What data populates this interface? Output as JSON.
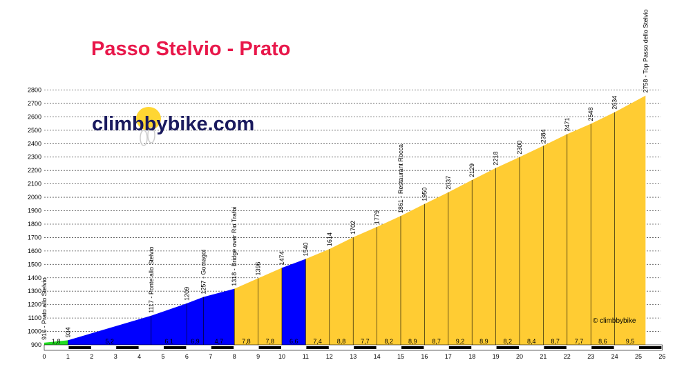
{
  "title": "Passo Stelvio - Prato",
  "logo_text": "climbbybike.com",
  "copyright": "© climbbybike",
  "colors": {
    "title": "#e8174a",
    "logo": "#1a1a5e",
    "green": "#22dd22",
    "blue": "#0000ff",
    "yellow": "#ffcc33",
    "badge": "#ffd633"
  },
  "chart_data": {
    "type": "area",
    "xlim": [
      0,
      26
    ],
    "ylim": [
      900,
      2800
    ],
    "xticks": [
      0,
      1,
      2,
      3,
      4,
      5,
      6,
      7,
      8,
      9,
      10,
      11,
      12,
      13,
      14,
      15,
      16,
      17,
      18,
      19,
      20,
      21,
      22,
      23,
      24,
      25,
      26
    ],
    "yticks": [
      900,
      1000,
      1100,
      1200,
      1300,
      1400,
      1500,
      1600,
      1700,
      1800,
      1900,
      2000,
      2100,
      2200,
      2300,
      2400,
      2500,
      2600,
      2700,
      2800
    ],
    "profile": [
      {
        "x": 0,
        "y": 916
      },
      {
        "x": 1,
        "y": 934
      },
      {
        "x": 4.5,
        "y": 1117
      },
      {
        "x": 6,
        "y": 1209
      },
      {
        "x": 6.7,
        "y": 1257
      },
      {
        "x": 8,
        "y": 1318
      },
      {
        "x": 9,
        "y": 1396
      },
      {
        "x": 10,
        "y": 1474
      },
      {
        "x": 11,
        "y": 1540
      },
      {
        "x": 12,
        "y": 1614
      },
      {
        "x": 13,
        "y": 1702
      },
      {
        "x": 14,
        "y": 1779
      },
      {
        "x": 15,
        "y": 1861
      },
      {
        "x": 16,
        "y": 1950
      },
      {
        "x": 17,
        "y": 2037
      },
      {
        "x": 18,
        "y": 2129
      },
      {
        "x": 19,
        "y": 2218
      },
      {
        "x": 20,
        "y": 2300
      },
      {
        "x": 21,
        "y": 2384
      },
      {
        "x": 22,
        "y": 2471
      },
      {
        "x": 23,
        "y": 2548
      },
      {
        "x": 24,
        "y": 2634
      },
      {
        "x": 25.3,
        "y": 2758
      }
    ],
    "segments": [
      {
        "x0": 0,
        "x1": 1,
        "grade": "1,8",
        "color": "green"
      },
      {
        "x0": 1,
        "x1": 4.5,
        "grade": "5,2",
        "color": "blue"
      },
      {
        "x0": 4.5,
        "x1": 6,
        "grade": "6,1",
        "color": "blue"
      },
      {
        "x0": 6,
        "x1": 6.7,
        "grade": "6,9",
        "color": "blue"
      },
      {
        "x0": 6.7,
        "x1": 8,
        "grade": "4,7",
        "color": "blue"
      },
      {
        "x0": 8,
        "x1": 9,
        "grade": "7,8",
        "color": "yellow"
      },
      {
        "x0": 9,
        "x1": 10,
        "grade": "7,8",
        "color": "yellow"
      },
      {
        "x0": 10,
        "x1": 11,
        "grade": "6,6",
        "color": "blue"
      },
      {
        "x0": 11,
        "x1": 12,
        "grade": "7,4",
        "color": "yellow"
      },
      {
        "x0": 12,
        "x1": 13,
        "grade": "8,8",
        "color": "yellow"
      },
      {
        "x0": 13,
        "x1": 14,
        "grade": "7,7",
        "color": "yellow"
      },
      {
        "x0": 14,
        "x1": 15,
        "grade": "8,2",
        "color": "yellow"
      },
      {
        "x0": 15,
        "x1": 16,
        "grade": "8,9",
        "color": "yellow"
      },
      {
        "x0": 16,
        "x1": 17,
        "grade": "8,7",
        "color": "yellow"
      },
      {
        "x0": 17,
        "x1": 18,
        "grade": "9,2",
        "color": "yellow"
      },
      {
        "x0": 18,
        "x1": 19,
        "grade": "8,9",
        "color": "yellow"
      },
      {
        "x0": 19,
        "x1": 20,
        "grade": "8,2",
        "color": "yellow"
      },
      {
        "x0": 20,
        "x1": 21,
        "grade": "8,4",
        "color": "yellow"
      },
      {
        "x0": 21,
        "x1": 22,
        "grade": "8,7",
        "color": "yellow"
      },
      {
        "x0": 22,
        "x1": 23,
        "grade": "7,7",
        "color": "yellow"
      },
      {
        "x0": 23,
        "x1": 24,
        "grade": "8,6",
        "color": "yellow"
      },
      {
        "x0": 24,
        "x1": 25.3,
        "grade": "9,5",
        "color": "yellow"
      }
    ],
    "point_labels": [
      {
        "x": 0,
        "y": 916,
        "text": "916 - Prato allo Stelvio"
      },
      {
        "x": 1,
        "y": 934,
        "text": "934"
      },
      {
        "x": 4.5,
        "y": 1117,
        "text": "1117 - Ponte allo Stelvio"
      },
      {
        "x": 6,
        "y": 1209,
        "text": "1209"
      },
      {
        "x": 6.7,
        "y": 1257,
        "text": "1257 - Gomagoi"
      },
      {
        "x": 8,
        "y": 1318,
        "text": "1318 - Bridge over Rio Trafoi"
      },
      {
        "x": 9,
        "y": 1396,
        "text": "1396"
      },
      {
        "x": 10,
        "y": 1474,
        "text": "1474"
      },
      {
        "x": 11,
        "y": 1540,
        "text": "1540"
      },
      {
        "x": 12,
        "y": 1614,
        "text": "1614"
      },
      {
        "x": 13,
        "y": 1702,
        "text": "1702"
      },
      {
        "x": 14,
        "y": 1779,
        "text": "1779"
      },
      {
        "x": 15,
        "y": 1861,
        "text": "1861 - Restaurant Rocca"
      },
      {
        "x": 16,
        "y": 1950,
        "text": "1950"
      },
      {
        "x": 17,
        "y": 2037,
        "text": "2037"
      },
      {
        "x": 18,
        "y": 2129,
        "text": "2129"
      },
      {
        "x": 19,
        "y": 2218,
        "text": "2218"
      },
      {
        "x": 20,
        "y": 2300,
        "text": "2300"
      },
      {
        "x": 21,
        "y": 2384,
        "text": "2384"
      },
      {
        "x": 22,
        "y": 2471,
        "text": "2471"
      },
      {
        "x": 23,
        "y": 2548,
        "text": "2548"
      },
      {
        "x": 24,
        "y": 2634,
        "text": "2634"
      },
      {
        "x": 25.3,
        "y": 2758,
        "text": "2758 - Top Passo dello Stelvio"
      }
    ],
    "grid": true
  }
}
